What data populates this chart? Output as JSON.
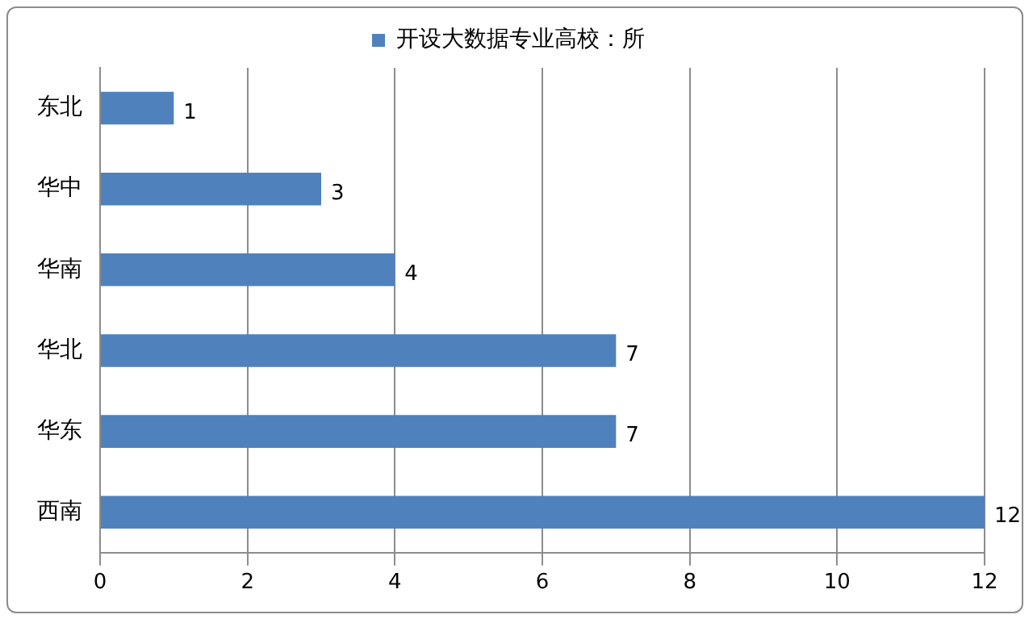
{
  "chart_data": {
    "type": "bar",
    "orientation": "horizontal",
    "categories": [
      "东北",
      "华中",
      "华南",
      "华北",
      "华东",
      "西南"
    ],
    "series": [
      {
        "name": "开设大数据专业高校：所",
        "color": "#4f81bd",
        "values": [
          1,
          3,
          4,
          7,
          7,
          12
        ]
      }
    ],
    "xlim": [
      0,
      12
    ],
    "xticks": [
      0,
      2,
      4,
      6,
      8,
      10,
      12
    ],
    "grid": "x",
    "legend": "top",
    "data_labels": true
  }
}
